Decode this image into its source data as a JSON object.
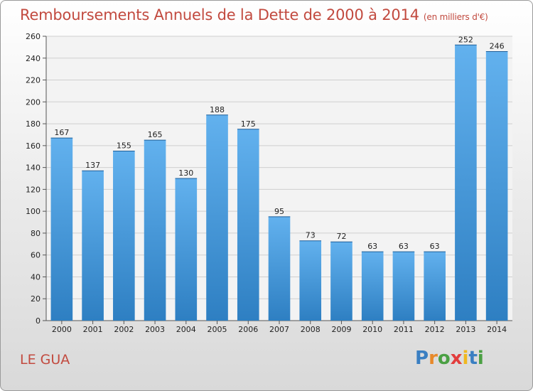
{
  "header": {
    "title": "Remboursements Annuels de la Dette de 2000 à 2014",
    "subtitle": "(en milliers d'€)"
  },
  "footer": {
    "commune": "LE GUA",
    "logo_letters": [
      "P",
      "r",
      "o",
      "x",
      "i",
      "t",
      "i"
    ],
    "logo_colors": [
      "#3a7fc2",
      "#e8892a",
      "#4aa043",
      "#e23d3d",
      "#f0b81f",
      "#3a7fc2",
      "#4aa043"
    ]
  },
  "colors": {
    "bar_light": "#62b1ee",
    "bar_dark": "#2e7fc2",
    "grid": "#cfcfcf",
    "text_accent": "#c24a3f"
  },
  "chart_data": {
    "type": "bar",
    "categories": [
      "2000",
      "2001",
      "2002",
      "2003",
      "2004",
      "2005",
      "2006",
      "2007",
      "2008",
      "2009",
      "2010",
      "2011",
      "2012",
      "2013",
      "2014"
    ],
    "values": [
      167,
      137,
      155,
      165,
      130,
      188,
      175,
      95,
      73,
      72,
      63,
      63,
      63,
      252,
      246
    ],
    "data_labels": [
      "167",
      "137",
      "155",
      "165",
      "130",
      "188",
      "175",
      "95",
      "73",
      "72",
      "63",
      "63",
      "63",
      "252",
      "246"
    ],
    "yticks": [
      "0",
      "20",
      "40",
      "60",
      "80",
      "100",
      "120",
      "140",
      "160",
      "180",
      "200",
      "220",
      "240",
      "260"
    ],
    "ylim": [
      0,
      260
    ],
    "grid": true,
    "legend": "none"
  }
}
